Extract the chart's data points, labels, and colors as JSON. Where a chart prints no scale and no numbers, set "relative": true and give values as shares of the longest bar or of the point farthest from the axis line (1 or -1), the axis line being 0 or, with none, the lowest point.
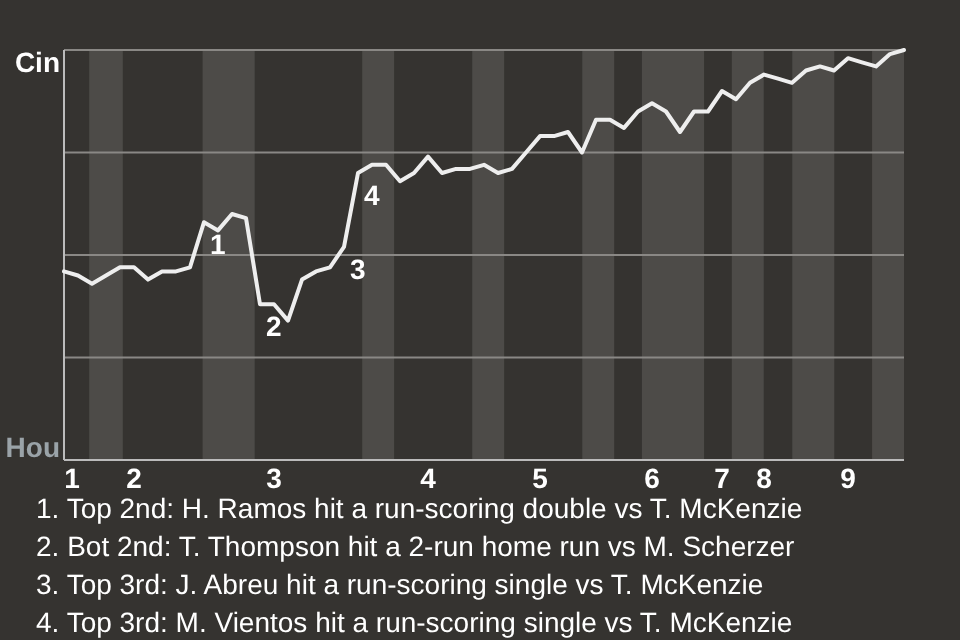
{
  "chart_data": {
    "type": "line",
    "relative": true,
    "categories": [
      "1",
      null,
      null,
      null,
      null,
      "2",
      null,
      null,
      null,
      null,
      null,
      null,
      null,
      null,
      null,
      "3",
      null,
      null,
      null,
      null,
      null,
      null,
      null,
      null,
      null,
      null,
      "4",
      null,
      null,
      null,
      null,
      null,
      null,
      null,
      "5",
      null,
      null,
      null,
      null,
      null,
      null,
      null,
      "6",
      null,
      null,
      null,
      null,
      "7",
      null,
      null,
      "8",
      null,
      null,
      null,
      null,
      null,
      "9",
      null,
      null,
      null,
      null
    ],
    "series": [
      {
        "color": "#eeeeee",
        "values": [
          0.46,
          0.45,
          0.43,
          0.45,
          0.47,
          0.47,
          0.44,
          0.46,
          0.46,
          0.47,
          0.58,
          0.56,
          0.6,
          0.59,
          0.38,
          0.38,
          0.34,
          0.44,
          0.46,
          0.47,
          0.52,
          0.7,
          0.72,
          0.72,
          0.68,
          0.7,
          0.74,
          0.7,
          0.71,
          0.71,
          0.72,
          0.7,
          0.71,
          0.75,
          0.79,
          0.79,
          0.8,
          0.75,
          0.83,
          0.83,
          0.81,
          0.85,
          0.87,
          0.85,
          0.8,
          0.85,
          0.85,
          0.9,
          0.88,
          0.92,
          0.94,
          0.93,
          0.92,
          0.95,
          0.96,
          0.95,
          0.98,
          0.97,
          0.96,
          0.99,
          1
        ]
      }
    ],
    "marker": "none",
    "line_style": "solid",
    "ref_lines": [
      {
        "axis": "y",
        "value": 0.25,
        "color": "#8a8885"
      },
      {
        "axis": "y",
        "value": 0.5,
        "color": "#8a8885"
      },
      {
        "axis": "y",
        "value": 0.75,
        "color": "#8a8885"
      }
    ],
    "annotations": [
      "Cin",
      "Hou",
      {
        "text": "1",
        "y": 0.58
      },
      {
        "text": "2",
        "y": 0.38
      },
      {
        "text": "3",
        "y": 0.52
      },
      {
        "text": "4",
        "y": 0.7
      },
      "1. Top 2nd: H. Ramos hit a run-scoring double vs T. McKenzie",
      "2. Bot 2nd: T. Thompson hit a 2-run home run vs M. Scherzer",
      "3. Top 3rd: J. Abreu hit a run-scoring single vs T. McKenzie",
      "4. Top 3rd: M. Vientos hit a run-scoring single vs T. McKenzie"
    ]
  }
}
